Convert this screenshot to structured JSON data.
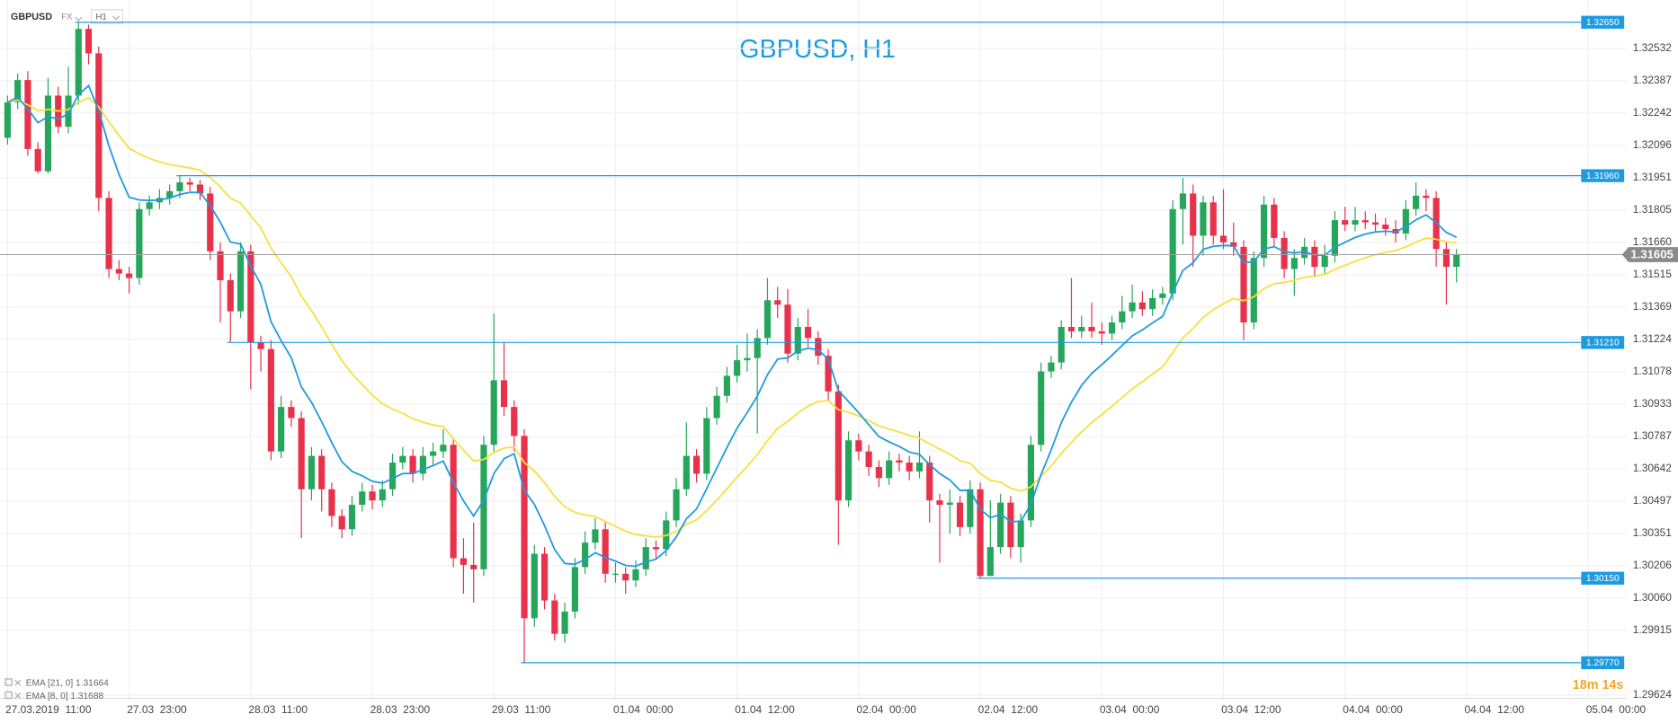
{
  "header": {
    "symbol": "GBPUSD",
    "market": "FX",
    "interval": "H1"
  },
  "chart_data": {
    "type": "candlestick",
    "title": "GBPUSD, H1",
    "categories": [
      "27.03.2019  11:00",
      null,
      null,
      null,
      null,
      null,
      null,
      null,
      null,
      null,
      null,
      null,
      "27.03  23:00",
      null,
      null,
      null,
      null,
      null,
      null,
      null,
      null,
      null,
      null,
      null,
      "28.03  11:00",
      null,
      null,
      null,
      null,
      null,
      null,
      null,
      null,
      null,
      null,
      null,
      "28.03  23:00",
      null,
      null,
      null,
      null,
      null,
      null,
      null,
      null,
      null,
      null,
      null,
      "29.03  11:00",
      null,
      null,
      null,
      null,
      null,
      null,
      null,
      null,
      null,
      null,
      null,
      "01.04  00:00",
      null,
      null,
      null,
      null,
      null,
      null,
      null,
      null,
      null,
      null,
      null,
      "01.04  12:00",
      null,
      null,
      null,
      null,
      null,
      null,
      null,
      null,
      null,
      null,
      null,
      "02.04  00:00",
      null,
      null,
      null,
      null,
      null,
      null,
      null,
      null,
      null,
      null,
      null,
      "02.04  12:00",
      null,
      null,
      null,
      null,
      null,
      null,
      null,
      null,
      null,
      null,
      null,
      "03.04  00:00",
      null,
      null,
      null,
      null,
      null,
      null,
      null,
      null,
      null,
      null,
      null,
      "03.04  12:00",
      null,
      null,
      null,
      null,
      null,
      null,
      null,
      null,
      null,
      null,
      null,
      "04.04  00:00",
      null,
      null,
      null,
      null,
      null,
      null,
      null,
      null,
      null,
      null,
      null,
      "04.04  12:00",
      null,
      null,
      null,
      null,
      null,
      null,
      null,
      null,
      null,
      null,
      null,
      "05.04  00:00"
    ],
    "up_color": "#26a65b",
    "down_color": "#e8314a",
    "ohlc": [
      [
        1.3213,
        1.3232,
        1.321,
        1.3229
      ],
      [
        1.3229,
        1.3242,
        1.3226,
        1.3239
      ],
      [
        1.3239,
        1.3243,
        1.3205,
        1.3208
      ],
      [
        1.3208,
        1.3211,
        1.3197,
        1.3198
      ],
      [
        1.3198,
        1.324,
        1.3197,
        1.3232
      ],
      [
        1.3232,
        1.3236,
        1.3215,
        1.3218
      ],
      [
        1.3218,
        1.3245,
        1.3215,
        1.3232
      ],
      [
        1.3232,
        1.3265,
        1.3228,
        1.3262
      ],
      [
        1.3262,
        1.3264,
        1.3246,
        1.3251
      ],
      [
        1.3251,
        1.3254,
        1.318,
        1.3186
      ],
      [
        1.3186,
        1.3189,
        1.315,
        1.3154
      ],
      [
        1.3154,
        1.3158,
        1.3149,
        1.3152
      ],
      [
        1.3152,
        1.3155,
        1.3143,
        1.315
      ],
      [
        1.315,
        1.3184,
        1.3147,
        1.3181
      ],
      [
        1.3181,
        1.3187,
        1.3178,
        1.3184
      ],
      [
        1.3184,
        1.319,
        1.3181,
        1.3186
      ],
      [
        1.3186,
        1.3192,
        1.3183,
        1.3189
      ],
      [
        1.3189,
        1.3196,
        1.3186,
        1.3193
      ],
      [
        1.3193,
        1.3195,
        1.3189,
        1.3192
      ],
      [
        1.3192,
        1.3194,
        1.3185,
        1.3188
      ],
      [
        1.3188,
        1.3191,
        1.3158,
        1.3162
      ],
      [
        1.3162,
        1.3166,
        1.313,
        1.3149
      ],
      [
        1.3149,
        1.3152,
        1.3121,
        1.3135
      ],
      [
        1.3135,
        1.3166,
        1.3132,
        1.3162
      ],
      [
        1.3162,
        1.3165,
        1.31,
        1.3121
      ],
      [
        1.3121,
        1.3124,
        1.3108,
        1.3118
      ],
      [
        1.3118,
        1.3122,
        1.3068,
        1.3072
      ],
      [
        1.3072,
        1.3097,
        1.3069,
        1.3092
      ],
      [
        1.3092,
        1.3095,
        1.3083,
        1.3087
      ],
      [
        1.3087,
        1.309,
        1.3033,
        1.3055
      ],
      [
        1.3055,
        1.3074,
        1.305,
        1.307
      ],
      [
        1.307,
        1.3073,
        1.3045,
        1.3055
      ],
      [
        1.3055,
        1.3058,
        1.3038,
        1.3043
      ],
      [
        1.3043,
        1.3046,
        1.3033,
        1.3037
      ],
      [
        1.3037,
        1.3052,
        1.3034,
        1.3048
      ],
      [
        1.3048,
        1.3058,
        1.3045,
        1.3054
      ],
      [
        1.3054,
        1.3057,
        1.3046,
        1.305
      ],
      [
        1.305,
        1.3059,
        1.3047,
        1.3055
      ],
      [
        1.3055,
        1.3071,
        1.3052,
        1.3067
      ],
      [
        1.3067,
        1.3074,
        1.3064,
        1.307
      ],
      [
        1.307,
        1.3073,
        1.3058,
        1.3062
      ],
      [
        1.3062,
        1.3074,
        1.3059,
        1.307
      ],
      [
        1.307,
        1.3076,
        1.3066,
        1.3072
      ],
      [
        1.3072,
        1.3082,
        1.3069,
        1.3075
      ],
      [
        1.3075,
        1.3078,
        1.302,
        1.3024
      ],
      [
        1.3024,
        1.3033,
        1.3008,
        1.3021
      ],
      [
        1.3021,
        1.304,
        1.3004,
        1.3019
      ],
      [
        1.3019,
        1.3079,
        1.3016,
        1.3075
      ],
      [
        1.3075,
        1.3134,
        1.3072,
        1.3104
      ],
      [
        1.3104,
        1.3121,
        1.3088,
        1.3092
      ],
      [
        1.3092,
        1.3095,
        1.3072,
        1.3079
      ],
      [
        1.3079,
        1.3082,
        1.2977,
        1.2997
      ],
      [
        1.2997,
        1.303,
        1.2993,
        1.3026
      ],
      [
        1.3026,
        1.3029,
        1.3001,
        1.3005
      ],
      [
        1.3005,
        1.3008,
        1.2987,
        1.299
      ],
      [
        1.299,
        1.3004,
        1.2986,
        1.3
      ],
      [
        1.3,
        1.3024,
        1.2997,
        1.302
      ],
      [
        1.302,
        1.3036,
        1.3017,
        1.3031
      ],
      [
        1.3031,
        1.3042,
        1.3028,
        1.3037
      ],
      [
        1.3037,
        1.304,
        1.3013,
        1.3017
      ],
      [
        1.3017,
        1.3022,
        1.3013,
        1.3017
      ],
      [
        1.3017,
        1.302,
        1.3008,
        1.3014
      ],
      [
        1.3014,
        1.3023,
        1.3011,
        1.3019
      ],
      [
        1.3019,
        1.3033,
        1.3016,
        1.3029
      ],
      [
        1.3029,
        1.3032,
        1.3024,
        1.3028
      ],
      [
        1.3028,
        1.3045,
        1.3025,
        1.3041
      ],
      [
        1.3041,
        1.306,
        1.3038,
        1.3055
      ],
      [
        1.3055,
        1.3085,
        1.3052,
        1.307
      ],
      [
        1.307,
        1.3073,
        1.3058,
        1.3062
      ],
      [
        1.3062,
        1.3092,
        1.3059,
        1.3087
      ],
      [
        1.3087,
        1.3101,
        1.3084,
        1.3097
      ],
      [
        1.3097,
        1.311,
        1.3094,
        1.3106
      ],
      [
        1.3106,
        1.312,
        1.3103,
        1.3113
      ],
      [
        1.3113,
        1.3125,
        1.3108,
        1.3114
      ],
      [
        1.3114,
        1.3127,
        1.308,
        1.3123
      ],
      [
        1.3123,
        1.315,
        1.312,
        1.314
      ],
      [
        1.314,
        1.3146,
        1.3132,
        1.3138
      ],
      [
        1.3138,
        1.3145,
        1.3112,
        1.3116
      ],
      [
        1.3116,
        1.3132,
        1.3113,
        1.3128
      ],
      [
        1.3128,
        1.3136,
        1.3119,
        1.3123
      ],
      [
        1.3123,
        1.3126,
        1.3111,
        1.3115
      ],
      [
        1.3115,
        1.3118,
        1.3095,
        1.3099
      ],
      [
        1.3099,
        1.3102,
        1.303,
        1.305
      ],
      [
        1.305,
        1.3081,
        1.3047,
        1.3077
      ],
      [
        1.3077,
        1.308,
        1.3068,
        1.3072
      ],
      [
        1.3072,
        1.3075,
        1.3061,
        1.3065
      ],
      [
        1.3065,
        1.3068,
        1.3056,
        1.306
      ],
      [
        1.306,
        1.3072,
        1.3057,
        1.3068
      ],
      [
        1.3068,
        1.3071,
        1.3063,
        1.3067
      ],
      [
        1.3067,
        1.307,
        1.3059,
        1.3063
      ],
      [
        1.3063,
        1.3081,
        1.306,
        1.3067
      ],
      [
        1.3067,
        1.307,
        1.304,
        1.305
      ],
      [
        1.305,
        1.3053,
        1.3022,
        1.3048
      ],
      [
        1.3048,
        1.3055,
        1.3035,
        1.3049
      ],
      [
        1.3049,
        1.3052,
        1.3034,
        1.3038
      ],
      [
        1.3038,
        1.3059,
        1.3035,
        1.3055
      ],
      [
        1.3055,
        1.3058,
        1.3015,
        1.3016
      ],
      [
        1.3016,
        1.305,
        1.3016,
        1.3029
      ],
      [
        1.3029,
        1.3053,
        1.3026,
        1.3049
      ],
      [
        1.3049,
        1.3052,
        1.3024,
        1.3029
      ],
      [
        1.3029,
        1.3044,
        1.3022,
        1.3041
      ],
      [
        1.3041,
        1.3079,
        1.3038,
        1.3075
      ],
      [
        1.3075,
        1.3112,
        1.3072,
        1.3108
      ],
      [
        1.3108,
        1.3115,
        1.3105,
        1.3112
      ],
      [
        1.3112,
        1.3131,
        1.3109,
        1.3128
      ],
      [
        1.3128,
        1.315,
        1.3123,
        1.3126
      ],
      [
        1.3126,
        1.3133,
        1.3123,
        1.3128
      ],
      [
        1.3128,
        1.3139,
        1.3123,
        1.3126
      ],
      [
        1.3126,
        1.313,
        1.312,
        1.3125
      ],
      [
        1.3125,
        1.3133,
        1.3122,
        1.313
      ],
      [
        1.313,
        1.3142,
        1.3127,
        1.3135
      ],
      [
        1.3135,
        1.3147,
        1.3132,
        1.3139
      ],
      [
        1.3139,
        1.3144,
        1.3133,
        1.3136
      ],
      [
        1.3136,
        1.3145,
        1.3133,
        1.3141
      ],
      [
        1.3141,
        1.3146,
        1.3138,
        1.3143
      ],
      [
        1.3143,
        1.3185,
        1.314,
        1.3181
      ],
      [
        1.3181,
        1.3195,
        1.3165,
        1.3188
      ],
      [
        1.3188,
        1.3192,
        1.3155,
        1.3169
      ],
      [
        1.3169,
        1.3187,
        1.316,
        1.3184
      ],
      [
        1.3184,
        1.3187,
        1.3165,
        1.3169
      ],
      [
        1.3169,
        1.319,
        1.3163,
        1.3166
      ],
      [
        1.3166,
        1.3175,
        1.316,
        1.3164
      ],
      [
        1.3164,
        1.3167,
        1.3122,
        1.313
      ],
      [
        1.313,
        1.3162,
        1.3127,
        1.3159
      ],
      [
        1.3159,
        1.3187,
        1.3155,
        1.3183
      ],
      [
        1.3183,
        1.3186,
        1.3164,
        1.3168
      ],
      [
        1.3168,
        1.3171,
        1.315,
        1.3154
      ],
      [
        1.3154,
        1.3163,
        1.3142,
        1.3159
      ],
      [
        1.3159,
        1.3168,
        1.3156,
        1.3164
      ],
      [
        1.3164,
        1.3167,
        1.3151,
        1.3155
      ],
      [
        1.3155,
        1.3165,
        1.3152,
        1.316
      ],
      [
        1.316,
        1.318,
        1.3157,
        1.3176
      ],
      [
        1.3176,
        1.3182,
        1.3171,
        1.3174
      ],
      [
        1.3174,
        1.3182,
        1.3171,
        1.3176
      ],
      [
        1.3176,
        1.318,
        1.3172,
        1.3175
      ],
      [
        1.3175,
        1.3179,
        1.3171,
        1.3174
      ],
      [
        1.3174,
        1.3177,
        1.3169,
        1.3172
      ],
      [
        1.3172,
        1.3176,
        1.3166,
        1.317
      ],
      [
        1.317,
        1.3185,
        1.3167,
        1.3181
      ],
      [
        1.3181,
        1.3193,
        1.3178,
        1.3187
      ],
      [
        1.3187,
        1.319,
        1.318,
        1.3186
      ],
      [
        1.3186,
        1.3189,
        1.3155,
        1.3163
      ],
      [
        1.3163,
        1.3166,
        1.3138,
        1.3155
      ],
      [
        1.3155,
        1.3163,
        1.3148,
        1.31605
      ],
      null,
      null,
      null,
      null,
      null,
      null,
      null,
      null,
      null,
      null,
      null,
      null,
      null
    ],
    "ylim": [
      1.2961,
      1.3275
    ],
    "yticks": [
      1.32532,
      1.32387,
      1.32242,
      1.32096,
      1.31951,
      1.31805,
      {
        "value": 1.3166,
        "label": "1.31660"
      },
      1.31515,
      1.31369,
      1.31224,
      1.31078,
      1.30933,
      1.30787,
      1.30642,
      1.30497,
      1.30351,
      1.30206,
      {
        "value": 1.3006,
        "label": "1.30060"
      },
      1.29915,
      1.29624
    ],
    "grid": true,
    "level_color": "#1e9be0",
    "levels": [
      {
        "value": 1.3265,
        "label": "1.32650"
      },
      {
        "value": 1.3196,
        "label": "1.31960"
      },
      {
        "value": 1.3121,
        "label": "1.31210"
      },
      {
        "value": 1.3015,
        "label": "1.30150"
      },
      {
        "value": 1.2977,
        "label": "1.29770"
      }
    ],
    "last_price": 1.31605,
    "indicators": [
      {
        "name": "EMA [21, 0]",
        "period": 21,
        "value": 1.31664,
        "color": "#f7e03c"
      },
      {
        "name": "EMA [8, 0]",
        "period": 8,
        "value": 1.31688,
        "color": "#1e9be0"
      }
    ],
    "timer": "18m 14s"
  }
}
